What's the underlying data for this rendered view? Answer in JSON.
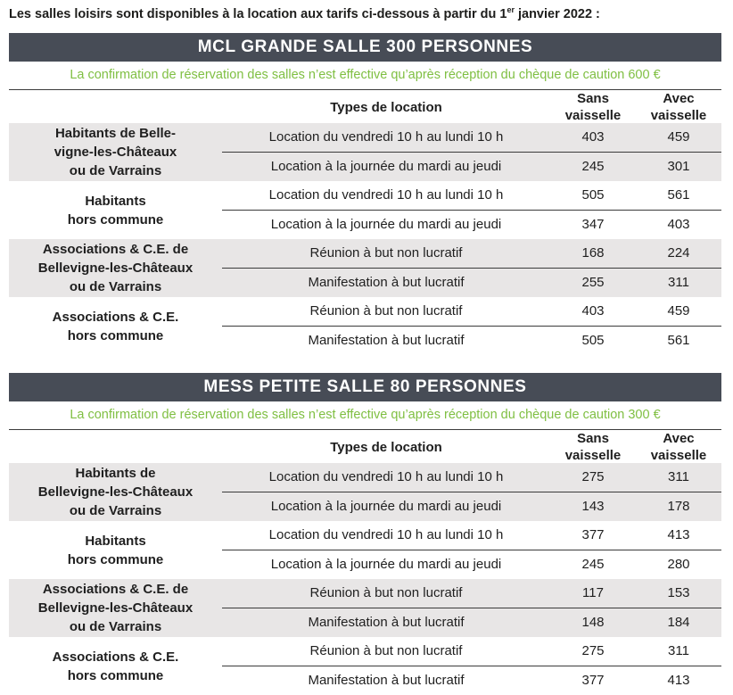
{
  "intro": {
    "text_before": "Les salles loisirs sont disponibles à la location aux tarifs ci-dessous à partir du 1",
    "sup": "er",
    "text_after": " janvier 2022 :"
  },
  "sections": [
    {
      "title": "MCL GRANDE SALLE 300 PERSONNES",
      "note": "La confirmation de réservation des salles n’est effective qu’après réception du chèque de caution 600 €",
      "header": {
        "types": "Types de location",
        "col1_l1": "Sans",
        "col1_l2": "vaisselle",
        "col2_l1": "Avec",
        "col2_l2": "vaisselle"
      },
      "groups": [
        {
          "label_lines": [
            "Habitants de Belle-",
            "vigne-les-Châteaux",
            "ou de Varrains"
          ],
          "rows": [
            {
              "type": "Location du vendredi 10 h au lundi 10 h",
              "sans": "403",
              "avec": "459"
            },
            {
              "type": "Location à la journée du mardi au jeudi",
              "sans": "245",
              "avec": "301"
            }
          ]
        },
        {
          "label_lines": [
            "Habitants",
            "hors commune"
          ],
          "rows": [
            {
              "type": "Location du vendredi 10 h au lundi 10 h",
              "sans": "505",
              "avec": "561"
            },
            {
              "type": "Location à la journée du mardi au jeudi",
              "sans": "347",
              "avec": "403"
            }
          ]
        },
        {
          "label_lines": [
            "Associations & C.E. de",
            "Bellevigne-les-Châteaux",
            "ou de Varrains"
          ],
          "rows": [
            {
              "type": "Réunion à but non lucratif",
              "sans": "168",
              "avec": "224"
            },
            {
              "type": "Manifestation à but lucratif",
              "sans": "255",
              "avec": "311"
            }
          ]
        },
        {
          "label_lines": [
            "Associations & C.E.",
            "hors commune"
          ],
          "rows": [
            {
              "type": "Réunion à but non lucratif",
              "sans": "403",
              "avec": "459"
            },
            {
              "type": "Manifestation à but lucratif",
              "sans": "505",
              "avec": "561"
            }
          ]
        }
      ]
    },
    {
      "title": "MESS PETITE SALLE 80 PERSONNES",
      "note": "La confirmation de réservation des salles n’est effective qu’après réception du chèque de caution 300 €",
      "header": {
        "types": "Types de location",
        "col1_l1": "Sans",
        "col1_l2": "vaisselle",
        "col2_l1": "Avec",
        "col2_l2": "vaisselle"
      },
      "groups": [
        {
          "label_lines": [
            "Habitants de",
            "Bellevigne-les-Châteaux",
            "ou de Varrains"
          ],
          "rows": [
            {
              "type": "Location du vendredi 10 h au lundi 10 h",
              "sans": "275",
              "avec": "311"
            },
            {
              "type": "Location à la journée du mardi au jeudi",
              "sans": "143",
              "avec": "178"
            }
          ]
        },
        {
          "label_lines": [
            "Habitants",
            "hors commune"
          ],
          "rows": [
            {
              "type": "Location du vendredi 10 h au lundi 10 h",
              "sans": "377",
              "avec": "413"
            },
            {
              "type": "Location à la journée du mardi au jeudi",
              "sans": "245",
              "avec": "280"
            }
          ]
        },
        {
          "label_lines": [
            "Associations & C.E. de",
            "Bellevigne-les-Châteaux",
            "ou de Varrains"
          ],
          "rows": [
            {
              "type": "Réunion à but non lucratif",
              "sans": "117",
              "avec": "153"
            },
            {
              "type": "Manifestation à but lucratif",
              "sans": "148",
              "avec": "184"
            }
          ]
        },
        {
          "label_lines": [
            "Associations & C.E.",
            "hors commune"
          ],
          "rows": [
            {
              "type": "Réunion à but non lucratif",
              "sans": "275",
              "avec": "311"
            },
            {
              "type": "Manifestation à but lucratif",
              "sans": "377",
              "avec": "413"
            }
          ]
        }
      ]
    }
  ]
}
